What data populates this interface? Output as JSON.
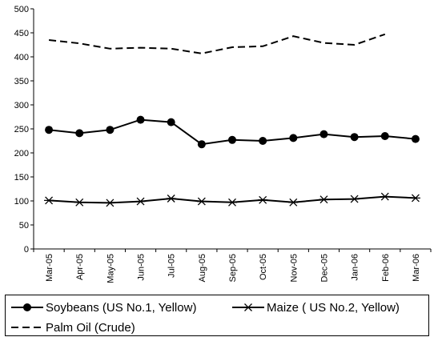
{
  "chart_data": {
    "type": "line",
    "categories": [
      "Mar-05",
      "Apr-05",
      "May-05",
      "Jun-05",
      "Jul-05",
      "Aug-05",
      "Sep-05",
      "Oct-05",
      "Nov-05",
      "Dec-05",
      "Jan-06",
      "Feb-06",
      "Mar-06"
    ],
    "y_ticks": [
      "0",
      "50",
      "100",
      "150",
      "200",
      "250",
      "300",
      "350",
      "400",
      "450",
      "500"
    ],
    "ylim": [
      0,
      500
    ],
    "grid": false,
    "legend_position": "bottom",
    "series": [
      {
        "name": "Soybeans (US No.1, Yellow)",
        "marker": "circle",
        "style": "solid",
        "values": [
          248,
          241,
          248,
          269,
          264,
          218,
          227,
          225,
          231,
          239,
          233,
          235,
          229
        ]
      },
      {
        "name": "Maize ( US No.2, Yellow)",
        "marker": "star",
        "style": "solid",
        "values": [
          101,
          97,
          96,
          99,
          105,
          99,
          97,
          102,
          97,
          103,
          104,
          109,
          106
        ]
      },
      {
        "name": "Palm Oil (Crude)",
        "marker": "none",
        "style": "dashed",
        "values": [
          435,
          428,
          417,
          419,
          417,
          407,
          420,
          422,
          443,
          429,
          425,
          447,
          null
        ]
      }
    ]
  }
}
